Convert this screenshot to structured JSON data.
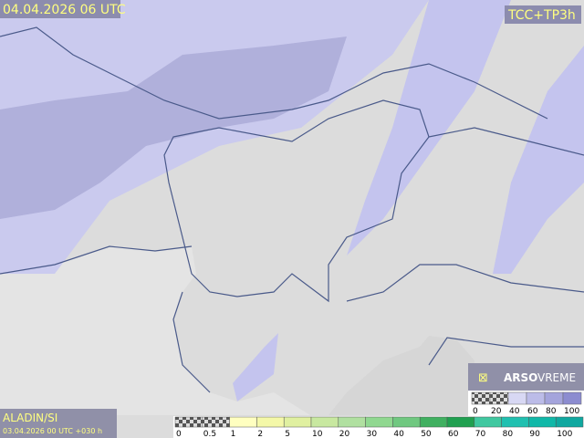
{
  "header": {
    "valid_time": "04.04.2026 06 UTC",
    "product": "TCC+TP3h"
  },
  "branding": {
    "logo_left": "ARSO",
    "logo_right": "VREME"
  },
  "model": {
    "name": "ALADIN/SI",
    "run": "03.04.2026 00 UTC +030 h"
  },
  "legend": {
    "cloud": {
      "labels": [
        "0",
        "20",
        "40",
        "60",
        "80",
        "100"
      ]
    },
    "precipitation": {
      "labels": [
        "0",
        "0.5",
        "1",
        "2",
        "5",
        "10",
        "20",
        "30",
        "40",
        "50",
        "60",
        "70",
        "80",
        "90",
        "100"
      ]
    }
  }
}
